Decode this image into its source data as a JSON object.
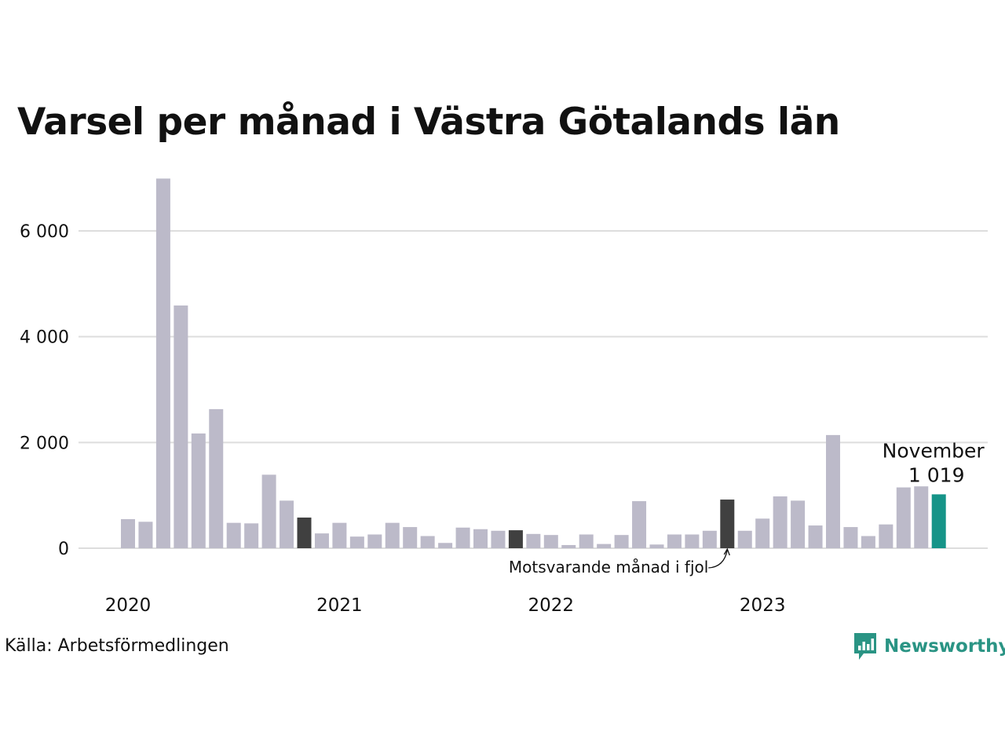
{
  "chart_data": {
    "type": "bar",
    "title": "Varsel per månad i Västra Götalands län",
    "xlabel": "",
    "ylabel": "",
    "ylim": [
      0,
      7000
    ],
    "yticks": [
      0,
      2000,
      4000,
      6000
    ],
    "ytick_labels": [
      "0",
      "2 000",
      "4 000",
      "6 000"
    ],
    "x_year_labels": [
      "2020",
      "2021",
      "2022",
      "2023"
    ],
    "categories": [
      "2020-01",
      "2020-02",
      "2020-03",
      "2020-04",
      "2020-05",
      "2020-06",
      "2020-07",
      "2020-08",
      "2020-09",
      "2020-10",
      "2020-11",
      "2020-12",
      "2021-01",
      "2021-02",
      "2021-03",
      "2021-04",
      "2021-05",
      "2021-06",
      "2021-07",
      "2021-08",
      "2021-09",
      "2021-10",
      "2021-11",
      "2021-12",
      "2022-01",
      "2022-02",
      "2022-03",
      "2022-04",
      "2022-05",
      "2022-06",
      "2022-07",
      "2022-08",
      "2022-09",
      "2022-10",
      "2022-11",
      "2022-12",
      "2023-01",
      "2023-02",
      "2023-03",
      "2023-04",
      "2023-05",
      "2023-06",
      "2023-07",
      "2023-08",
      "2023-09",
      "2023-10",
      "2023-11"
    ],
    "values": [
      550,
      500,
      6990,
      4590,
      2170,
      2630,
      480,
      470,
      1390,
      900,
      580,
      280,
      480,
      220,
      260,
      480,
      400,
      230,
      100,
      390,
      360,
      330,
      340,
      270,
      250,
      60,
      260,
      80,
      250,
      890,
      70,
      260,
      260,
      330,
      920,
      330,
      560,
      980,
      900,
      430,
      2140,
      400,
      230,
      450,
      1150,
      1170,
      1019
    ],
    "highlighted": {
      "previous_year_months": [
        "2020-11",
        "2021-11",
        "2022-11"
      ],
      "current_month": "2023-11"
    },
    "colors": {
      "bar": "#bcbac9",
      "previous_year": "#404040",
      "current": "#169488",
      "grid": "#dddddd"
    },
    "annotations": {
      "current_label": "November",
      "current_value": "1 019",
      "previous_year_note": "Motsvarande månad i fjol"
    },
    "grid": true,
    "legend": "none"
  },
  "footer": {
    "source": "Källa: Arbetsförmedlingen",
    "brand": "Newsworthy"
  }
}
